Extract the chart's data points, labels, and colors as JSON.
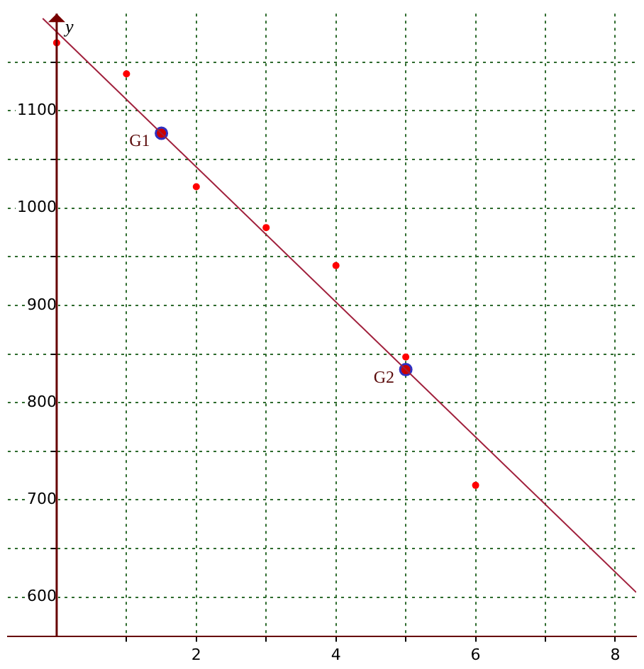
{
  "chart_data": {
    "type": "scatter",
    "ylabel": "y",
    "xlim": [
      -0.7,
      8.3
    ],
    "ylim": [
      560,
      1200
    ],
    "xticks": [
      {
        "value": 1,
        "label": null
      },
      {
        "value": 2,
        "label": "2"
      },
      {
        "value": 3,
        "label": null
      },
      {
        "value": 4,
        "label": "4"
      },
      {
        "value": 5,
        "label": null
      },
      {
        "value": 6,
        "label": "6"
      },
      {
        "value": 7,
        "label": null
      },
      {
        "value": 8,
        "label": "8"
      }
    ],
    "yticks": [
      {
        "value": 600,
        "label": "600"
      },
      {
        "value": 650,
        "label": null
      },
      {
        "value": 700,
        "label": "700"
      },
      {
        "value": 750,
        "label": null
      },
      {
        "value": 800,
        "label": "800"
      },
      {
        "value": 850,
        "label": null
      },
      {
        "value": 900,
        "label": "900"
      },
      {
        "value": 950,
        "label": null
      },
      {
        "value": 1000,
        "label": "1000"
      },
      {
        "value": 1050,
        "label": null
      },
      {
        "value": 1100,
        "label": "1100"
      },
      {
        "value": 1150,
        "label": null
      }
    ],
    "series": [
      {
        "color": "#ff0000",
        "x": [
          0,
          1,
          2,
          3,
          4,
          5,
          6
        ],
        "values": [
          1170,
          1138,
          1022,
          980,
          941,
          847,
          715
        ]
      },
      {
        "type": "line",
        "marker": "none",
        "color": "#a0203c",
        "x": [
          -0.2,
          8.3
        ],
        "values": [
          1195,
          605
        ]
      },
      {
        "color": "#cc0000",
        "x": [
          1.5,
          5
        ],
        "values": [
          1077,
          834
        ]
      }
    ],
    "annotations": [
      {
        "text": "G1",
        "x": 1.5,
        "y": 1077
      },
      {
        "text": "G2",
        "x": 5,
        "y": 834
      }
    ],
    "grid": true,
    "legend": false,
    "marker": "circle"
  }
}
